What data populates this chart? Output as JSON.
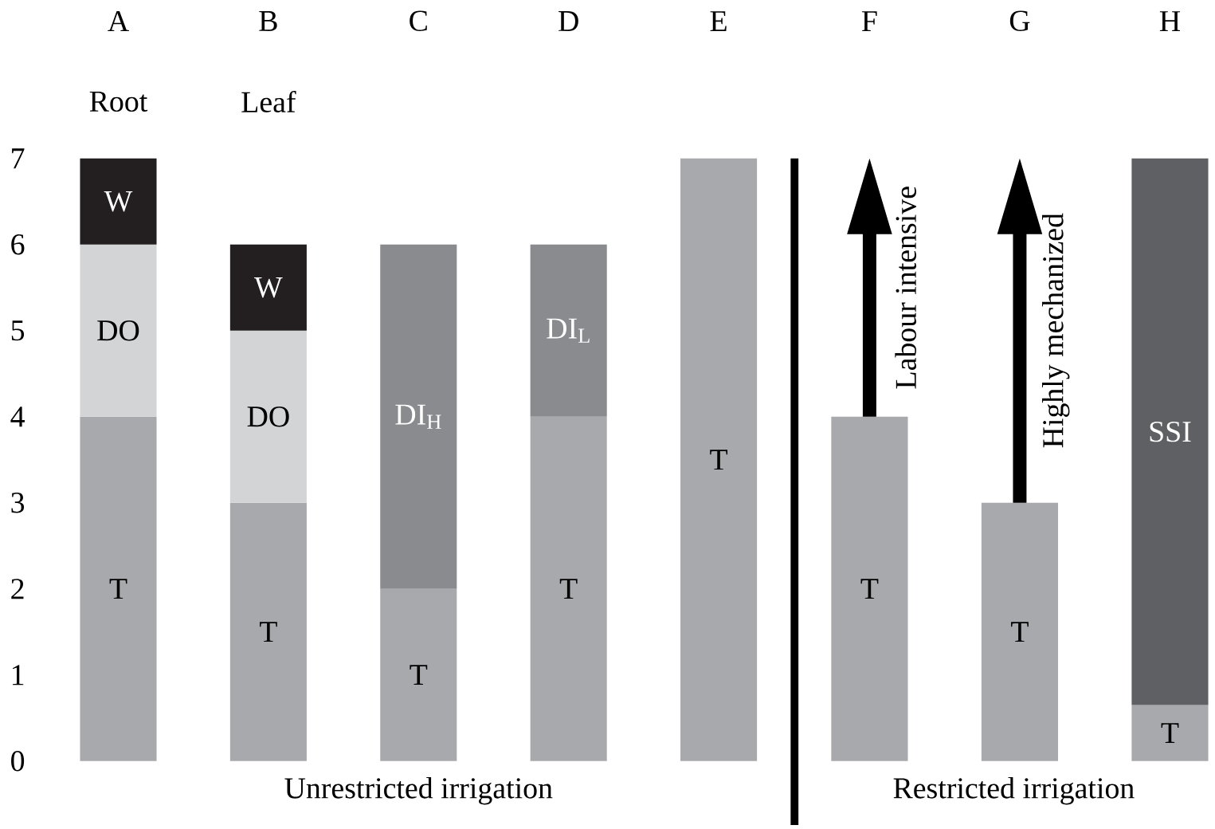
{
  "chart_data": [
    {
      "type": "bar",
      "stacked": true,
      "xlabel": "Unrestricted irrigation",
      "categories": [
        "A",
        "B",
        "C",
        "D",
        "E"
      ],
      "series": [
        {
          "name": "T",
          "color": "#a8a9ad",
          "values": [
            4,
            3,
            2,
            4,
            7
          ]
        },
        {
          "name": "DO",
          "color": "#d3d4d6",
          "values": [
            2,
            2,
            null,
            null,
            null
          ]
        },
        {
          "name": "DI$_{H}$",
          "color": "#8a8b8f",
          "values": [
            null,
            null,
            4,
            null,
            null
          ]
        },
        {
          "name": "DI$_{L}$",
          "color": "#8a8b8f",
          "values": [
            null,
            null,
            null,
            2,
            null
          ]
        },
        {
          "name": "W",
          "color": "#231f20",
          "values": [
            1,
            1,
            null,
            null,
            null
          ]
        }
      ],
      "ylim": [
        0,
        7
      ],
      "yticks": [
        0,
        1,
        2,
        3,
        4,
        5,
        6,
        7
      ],
      "annotations": [
        "Root",
        "Leaf"
      ]
    },
    {
      "type": "bar",
      "stacked": true,
      "xlabel": "Restricted irrigation",
      "categories": [
        "F",
        "G",
        "H"
      ],
      "series": [
        {
          "name": "T",
          "color": "#a8a9ad",
          "values": [
            4,
            3,
            0.65
          ]
        },
        {
          "name": "SSI",
          "color": "#5f6064",
          "values": [
            null,
            null,
            6.35
          ]
        }
      ],
      "ylim": [
        0,
        7
      ],
      "yticks": [
        0,
        1,
        2,
        3,
        4,
        5,
        6,
        7
      ],
      "tick_labels": "x",
      "annotations": [
        "Labour intensive",
        "Highly mechanized"
      ]
    }
  ]
}
